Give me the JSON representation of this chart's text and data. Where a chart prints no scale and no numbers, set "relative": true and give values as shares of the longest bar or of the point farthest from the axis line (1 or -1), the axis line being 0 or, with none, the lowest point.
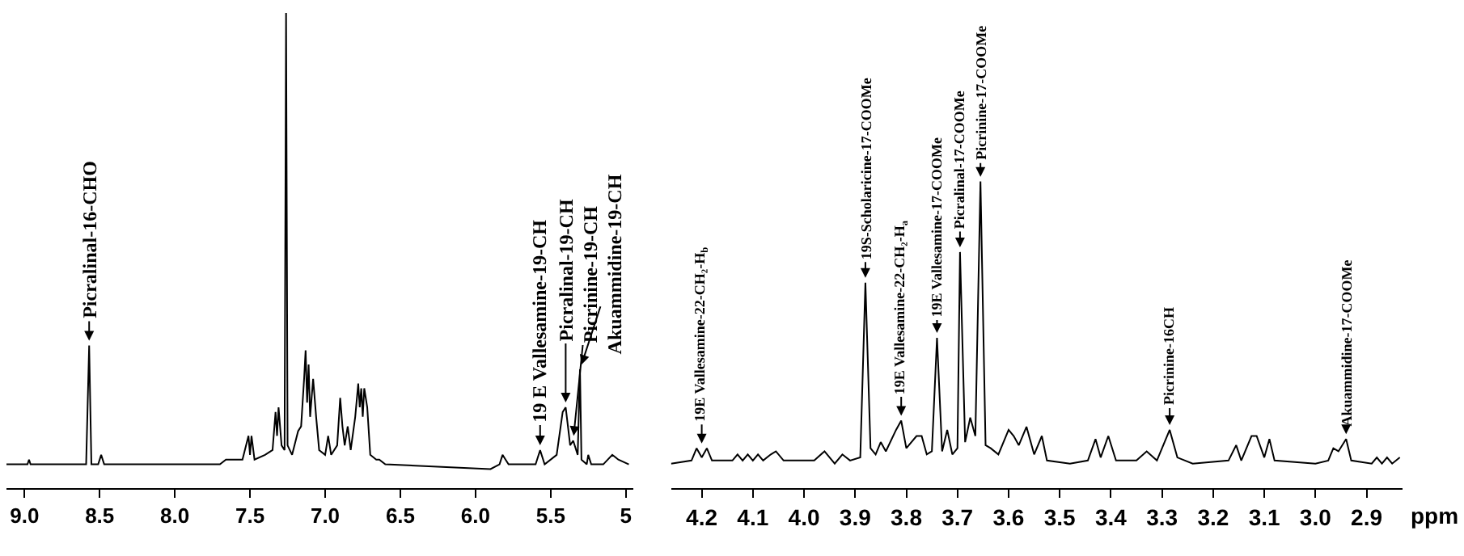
{
  "chart_data": [
    {
      "type": "line",
      "relative": true,
      "tick_labels": "x",
      "xlim": [
        9.12,
        4.95
      ],
      "xticks": [
        {
          "value": 9,
          "label": "9.0"
        },
        8.5,
        {
          "value": 8,
          "label": "8.0"
        },
        7.5,
        {
          "value": 7,
          "label": "7.0"
        },
        6.5,
        {
          "value": 6,
          "label": "6.0"
        },
        5.5,
        5
      ],
      "x": [
        9.12,
        8.98,
        8.97,
        8.96,
        8.59,
        8.57,
        8.555,
        8.51,
        8.49,
        8.47,
        8.05,
        7.7,
        7.66,
        7.55,
        7.51,
        7.5,
        7.49,
        7.47,
        7.4,
        7.35,
        7.33,
        7.32,
        7.31,
        7.29,
        7.27,
        7.26,
        7.25,
        7.22,
        7.18,
        7.16,
        7.14,
        7.13,
        7.12,
        7.11,
        7.1,
        7.08,
        7.06,
        7.04,
        7.0,
        6.98,
        6.96,
        6.92,
        6.9,
        6.885,
        6.87,
        6.85,
        6.83,
        6.8,
        6.78,
        6.77,
        6.76,
        6.75,
        6.74,
        6.72,
        6.7,
        6.66,
        6.64,
        6.6,
        5.9,
        5.84,
        5.82,
        5.8,
        5.78,
        5.6,
        5.57,
        5.54,
        5.46,
        5.42,
        5.4,
        5.37,
        5.35,
        5.32,
        5.305,
        5.295,
        5.26,
        5.25,
        5.23,
        5.15,
        5.09,
        5.05,
        4.98
      ],
      "series": [
        {
          "color": "#000000",
          "values": [
            0.05,
            0.05,
            0.06,
            0.05,
            0.05,
            0.3,
            0.05,
            0.05,
            0.07,
            0.05,
            0.05,
            0.05,
            0.06,
            0.06,
            0.11,
            0.07,
            0.11,
            0.06,
            0.07,
            0.08,
            0.16,
            0.11,
            0.17,
            0.09,
            0.08,
            1.0,
            0.09,
            0.07,
            0.12,
            0.13,
            0.23,
            0.29,
            0.18,
            0.26,
            0.15,
            0.23,
            0.15,
            0.08,
            0.07,
            0.11,
            0.07,
            0.09,
            0.19,
            0.13,
            0.09,
            0.13,
            0.08,
            0.15,
            0.22,
            0.17,
            0.21,
            0.15,
            0.21,
            0.17,
            0.07,
            0.06,
            0.06,
            0.05,
            0.04,
            0.05,
            0.07,
            0.06,
            0.05,
            0.05,
            0.08,
            0.05,
            0.07,
            0.16,
            0.17,
            0.09,
            0.1,
            0.07,
            0.25,
            0.06,
            0.05,
            0.07,
            0.05,
            0.05,
            0.07,
            0.06,
            0.05
          ]
        }
      ],
      "annotations": [
        {
          "text": "Picralinal-16-CHO",
          "x": 8.57,
          "y": 0.3
        },
        {
          "text": "19 E Vallesamine-19-CH",
          "x": 5.57,
          "y": 0.08
        },
        {
          "text": "Picralinal-19-CH",
          "x": 5.4,
          "y": 0.17
        },
        {
          "text": "Picrinine-19-CH",
          "x": 5.35,
          "y": 0.1
        },
        {
          "text": "Akuammidine-19-CH",
          "x": 5.305,
          "y": 0.25
        }
      ]
    },
    {
      "type": "line",
      "relative": true,
      "tick_labels": "x",
      "xlabel": "ppm",
      "xlim": [
        4.26,
        2.83
      ],
      "xticks": [
        4.2,
        4.1,
        {
          "value": 4,
          "label": "4.0"
        },
        3.9,
        3.8,
        3.7,
        3.6,
        3.5,
        3.4,
        3.3,
        3.2,
        3.1,
        {
          "value": 3,
          "label": "3.0"
        },
        2.9
      ],
      "x": [
        4.26,
        4.22,
        4.21,
        4.2,
        4.19,
        4.18,
        4.14,
        4.13,
        4.12,
        4.11,
        4.1,
        4.09,
        4.08,
        4.065,
        4.055,
        4.04,
        3.98,
        3.96,
        3.94,
        3.925,
        3.91,
        3.89,
        3.88,
        3.87,
        3.86,
        3.85,
        3.84,
        3.82,
        3.81,
        3.8,
        3.78,
        3.77,
        3.76,
        3.75,
        3.74,
        3.73,
        3.72,
        3.71,
        3.7,
        3.695,
        3.685,
        3.675,
        3.665,
        3.655,
        3.645,
        3.635,
        3.62,
        3.6,
        3.59,
        3.58,
        3.565,
        3.55,
        3.535,
        3.525,
        3.48,
        3.445,
        3.43,
        3.42,
        3.405,
        3.39,
        3.35,
        3.33,
        3.31,
        3.285,
        3.27,
        3.24,
        3.17,
        3.155,
        3.145,
        3.125,
        3.115,
        3.1,
        3.09,
        3.08,
        3.0,
        2.975,
        2.965,
        2.955,
        2.94,
        2.93,
        2.89,
        2.88,
        2.87,
        2.86,
        2.85,
        2.835
      ],
      "series": [
        {
          "color": "#000000",
          "values": [
            0.08,
            0.09,
            0.13,
            0.1,
            0.13,
            0.09,
            0.09,
            0.11,
            0.09,
            0.11,
            0.09,
            0.11,
            0.09,
            0.11,
            0.12,
            0.09,
            0.09,
            0.12,
            0.08,
            0.11,
            0.09,
            0.1,
            0.67,
            0.13,
            0.11,
            0.15,
            0.12,
            0.19,
            0.22,
            0.13,
            0.17,
            0.17,
            0.11,
            0.12,
            0.49,
            0.12,
            0.19,
            0.11,
            0.13,
            0.77,
            0.15,
            0.23,
            0.17,
            1.0,
            0.14,
            0.13,
            0.11,
            0.19,
            0.17,
            0.14,
            0.2,
            0.11,
            0.17,
            0.09,
            0.08,
            0.09,
            0.16,
            0.1,
            0.17,
            0.09,
            0.09,
            0.12,
            0.09,
            0.19,
            0.1,
            0.08,
            0.09,
            0.14,
            0.09,
            0.17,
            0.17,
            0.1,
            0.16,
            0.09,
            0.08,
            0.09,
            0.13,
            0.12,
            0.16,
            0.09,
            0.08,
            0.1,
            0.08,
            0.1,
            0.08,
            0.1
          ]
        }
      ],
      "annotations": [
        {
          "text": "19E Vallesamine-22-CH₂-H$_{b}$",
          "x": 4.2,
          "y": 0.13
        },
        {
          "text": "19S-Scholaricine-17-COOMe",
          "x": 3.88,
          "y": 0.67
        },
        {
          "text": "19E Vallesamine-22-CH₂-H$_{a}$",
          "x": 3.81,
          "y": 0.22
        },
        {
          "text": "19E Vallesamine-17-COOMe",
          "x": 3.74,
          "y": 0.49
        },
        {
          "text": "Picralinal-17-COOMe",
          "x": 3.695,
          "y": 0.77
        },
        {
          "text": "Picrinine-17-COOMe",
          "x": 3.655,
          "y": 1.0
        },
        {
          "text": "Picrinine-16CH",
          "x": 3.285,
          "y": 0.19
        },
        {
          "text": "Akuammidine-17-COOMe",
          "x": 2.94,
          "y": 0.16
        }
      ]
    }
  ]
}
